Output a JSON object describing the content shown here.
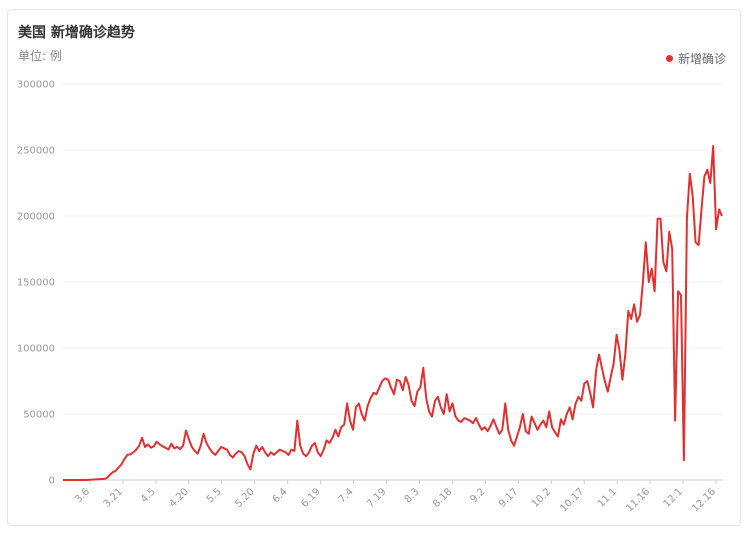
{
  "header": {
    "title": "美国 新增确诊趋势",
    "unit": "单位: 例"
  },
  "legend": {
    "label": "新增确诊"
  },
  "colors": {
    "line": "#e03131",
    "grid": "#f2f2f2",
    "axis": "#cccccc"
  },
  "chart_data": {
    "type": "line",
    "title": "美国 新增确诊趋势",
    "subtitle": "单位: 例",
    "x_ticks": [
      "3.6",
      "3.21",
      "4.5",
      "4.20",
      "5.5",
      "5.20",
      "6.4",
      "6.19",
      "7.4",
      "7.19",
      "8.3",
      "8.18",
      "9.2",
      "9.17",
      "10.2",
      "10.17",
      "11.1",
      "11.16",
      "12.1",
      "12.16"
    ],
    "y_ticks": [
      0,
      50000,
      100000,
      150000,
      200000,
      250000,
      300000
    ],
    "ylim": [
      0,
      300000
    ],
    "legend_position": "top-right",
    "grid": true,
    "series": [
      {
        "name": "新增确诊",
        "points": [
          [
            0,
            0
          ],
          [
            8,
            0
          ],
          [
            12,
            500
          ],
          [
            14,
            800
          ],
          [
            15,
            1500
          ],
          [
            16,
            4000
          ],
          [
            17,
            6000
          ],
          [
            18,
            7000
          ],
          [
            19,
            9500
          ],
          [
            20,
            12000
          ],
          [
            21,
            16000
          ],
          [
            22,
            19000
          ],
          [
            23,
            19500
          ],
          [
            24,
            21000
          ],
          [
            25,
            23000
          ],
          [
            26,
            26000
          ],
          [
            27,
            32000
          ],
          [
            28,
            25000
          ],
          [
            29,
            27000
          ],
          [
            30,
            24500
          ],
          [
            31,
            25500
          ],
          [
            32,
            29000
          ],
          [
            33,
            27000
          ],
          [
            34,
            25500
          ],
          [
            35,
            24500
          ],
          [
            36,
            23000
          ],
          [
            37,
            27500
          ],
          [
            38,
            24000
          ],
          [
            39,
            25000
          ],
          [
            40,
            23500
          ],
          [
            41,
            26000
          ],
          [
            42,
            37500
          ],
          [
            43,
            31000
          ],
          [
            44,
            25000
          ],
          [
            45,
            22000
          ],
          [
            46,
            20000
          ],
          [
            47,
            26000
          ],
          [
            48,
            35000
          ],
          [
            49,
            28000
          ],
          [
            50,
            24000
          ],
          [
            51,
            21000
          ],
          [
            52,
            19000
          ],
          [
            53,
            22000
          ],
          [
            54,
            25000
          ],
          [
            55,
            24000
          ],
          [
            56,
            23000
          ],
          [
            57,
            19000
          ],
          [
            58,
            17000
          ],
          [
            59,
            20000
          ],
          [
            60,
            22000
          ],
          [
            61,
            21000
          ],
          [
            62,
            18000
          ],
          [
            63,
            12000
          ],
          [
            64,
            8000
          ],
          [
            65,
            20000
          ],
          [
            66,
            26000
          ],
          [
            67,
            22000
          ],
          [
            68,
            25000
          ],
          [
            69,
            21000
          ],
          [
            70,
            18000
          ],
          [
            71,
            21000
          ],
          [
            72,
            19000
          ],
          [
            73,
            21000
          ],
          [
            74,
            23000
          ],
          [
            75,
            22000
          ],
          [
            76,
            21000
          ],
          [
            77,
            19000
          ],
          [
            78,
            23000
          ],
          [
            79,
            22000
          ],
          [
            80,
            45000
          ],
          [
            81,
            26000
          ],
          [
            82,
            20000
          ],
          [
            83,
            18000
          ],
          [
            84,
            21000
          ],
          [
            85,
            26000
          ],
          [
            86,
            28000
          ],
          [
            87,
            21000
          ],
          [
            88,
            18000
          ],
          [
            89,
            23000
          ],
          [
            90,
            30000
          ],
          [
            91,
            28000
          ],
          [
            92,
            32000
          ],
          [
            93,
            38000
          ],
          [
            94,
            33000
          ],
          [
            95,
            40000
          ],
          [
            96,
            42000
          ],
          [
            97,
            58000
          ],
          [
            98,
            45000
          ],
          [
            99,
            38000
          ],
          [
            100,
            55000
          ],
          [
            101,
            58000
          ],
          [
            102,
            50000
          ],
          [
            103,
            45000
          ],
          [
            104,
            56000
          ],
          [
            105,
            62000
          ],
          [
            106,
            66000
          ],
          [
            107,
            65000
          ],
          [
            108,
            70000
          ],
          [
            109,
            75000
          ],
          [
            110,
            77000
          ],
          [
            111,
            76000
          ],
          [
            112,
            70000
          ],
          [
            113,
            65000
          ],
          [
            114,
            76000
          ],
          [
            115,
            75000
          ],
          [
            116,
            68000
          ],
          [
            117,
            78000
          ],
          [
            118,
            72000
          ],
          [
            119,
            60000
          ],
          [
            120,
            56000
          ],
          [
            121,
            67000
          ],
          [
            122,
            70000
          ],
          [
            123,
            85000
          ],
          [
            124,
            62000
          ],
          [
            125,
            52000
          ],
          [
            126,
            48000
          ],
          [
            127,
            60000
          ],
          [
            128,
            63000
          ],
          [
            129,
            55000
          ],
          [
            130,
            50000
          ],
          [
            131,
            65000
          ],
          [
            132,
            52000
          ],
          [
            133,
            58000
          ],
          [
            134,
            48000
          ],
          [
            135,
            45000
          ],
          [
            136,
            44000
          ],
          [
            137,
            47000
          ],
          [
            138,
            46000
          ],
          [
            139,
            45000
          ],
          [
            140,
            43000
          ],
          [
            141,
            47000
          ],
          [
            142,
            42000
          ],
          [
            143,
            38000
          ],
          [
            144,
            40000
          ],
          [
            145,
            37000
          ],
          [
            146,
            41000
          ],
          [
            147,
            46000
          ],
          [
            148,
            40000
          ],
          [
            149,
            35000
          ],
          [
            150,
            38000
          ],
          [
            151,
            58000
          ],
          [
            152,
            38000
          ],
          [
            153,
            30000
          ],
          [
            154,
            26000
          ],
          [
            155,
            33000
          ],
          [
            156,
            40000
          ],
          [
            157,
            50000
          ],
          [
            158,
            37000
          ],
          [
            159,
            35000
          ],
          [
            160,
            48000
          ],
          [
            161,
            43000
          ],
          [
            162,
            38000
          ],
          [
            163,
            42000
          ],
          [
            164,
            45000
          ],
          [
            165,
            40000
          ],
          [
            166,
            52000
          ],
          [
            167,
            40000
          ],
          [
            168,
            36000
          ],
          [
            169,
            33000
          ],
          [
            170,
            46000
          ],
          [
            171,
            42000
          ],
          [
            172,
            50000
          ],
          [
            173,
            55000
          ],
          [
            174,
            46000
          ],
          [
            175,
            58000
          ],
          [
            176,
            63000
          ],
          [
            177,
            60000
          ],
          [
            178,
            73000
          ],
          [
            179,
            75000
          ],
          [
            180,
            66000
          ],
          [
            181,
            55000
          ],
          [
            182,
            83000
          ],
          [
            183,
            95000
          ],
          [
            184,
            85000
          ],
          [
            185,
            75000
          ],
          [
            186,
            67000
          ],
          [
            187,
            78000
          ],
          [
            188,
            88000
          ],
          [
            189,
            110000
          ],
          [
            190,
            98000
          ],
          [
            191,
            76000
          ],
          [
            192,
            95000
          ],
          [
            193,
            128000
          ],
          [
            194,
            122000
          ],
          [
            195,
            133000
          ],
          [
            196,
            120000
          ],
          [
            197,
            125000
          ],
          [
            198,
            150000
          ],
          [
            199,
            180000
          ],
          [
            200,
            150000
          ],
          [
            201,
            160000
          ],
          [
            202,
            143000
          ],
          [
            203,
            198000
          ],
          [
            204,
            198000
          ],
          [
            205,
            165000
          ],
          [
            206,
            158000
          ],
          [
            207,
            188000
          ],
          [
            208,
            175000
          ],
          [
            209,
            45000
          ],
          [
            210,
            143000
          ],
          [
            211,
            140000
          ],
          [
            212,
            15000
          ],
          [
            213,
            198000
          ],
          [
            214,
            232000
          ],
          [
            215,
            215000
          ],
          [
            216,
            180000
          ],
          [
            217,
            178000
          ],
          [
            218,
            205000
          ],
          [
            219,
            230000
          ],
          [
            220,
            235000
          ],
          [
            221,
            225000
          ],
          [
            222,
            253000
          ],
          [
            223,
            190000
          ],
          [
            224,
            205000
          ],
          [
            225,
            200000
          ]
        ]
      }
    ]
  }
}
